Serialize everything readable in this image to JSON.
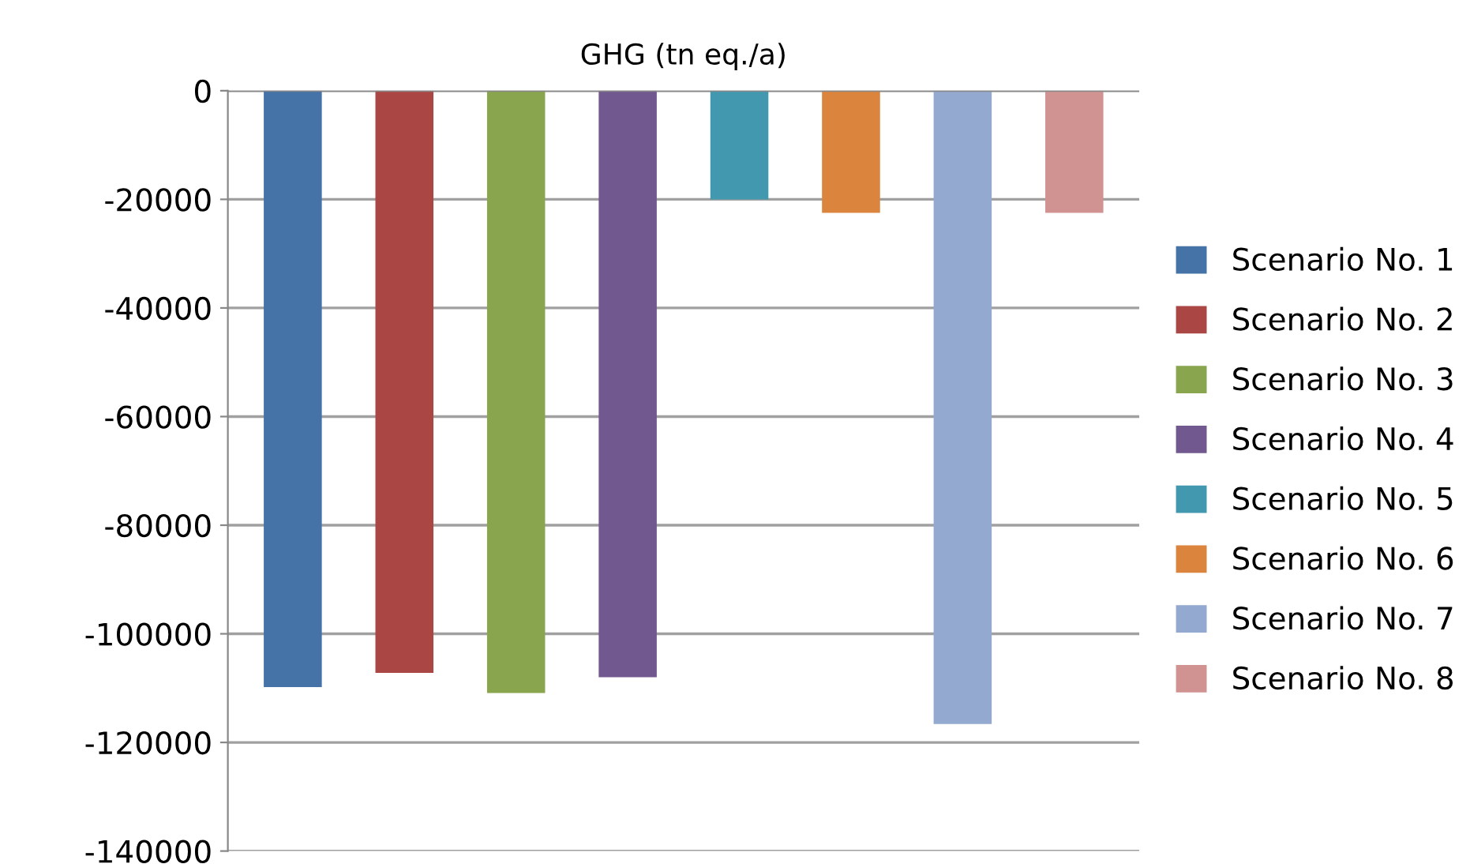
{
  "chart_data": {
    "type": "bar",
    "title": "GHG (tn eq./a)",
    "categories": [
      null
    ],
    "series": [
      {
        "name": "Scenario No. 1",
        "color": "#4572a7",
        "values": [
          -109800
        ]
      },
      {
        "name": "Scenario No. 2",
        "color": "#aa4643",
        "values": [
          -107200
        ]
      },
      {
        "name": "Scenario No. 3",
        "color": "#89a54e",
        "values": [
          -110900
        ]
      },
      {
        "name": "Scenario No. 4",
        "color": "#71588f",
        "values": [
          -108000
        ]
      },
      {
        "name": "Scenario No. 5",
        "color": "#4198af",
        "values": [
          -20000
        ]
      },
      {
        "name": "Scenario No. 6",
        "color": "#db843d",
        "values": [
          -22500
        ]
      },
      {
        "name": "Scenario No. 7",
        "color": "#93a9cf",
        "values": [
          -116600
        ]
      },
      {
        "name": "Scenario No. 8",
        "color": "#d19392",
        "values": [
          -22500
        ]
      }
    ],
    "ylim": [
      -140000,
      0
    ],
    "yticks": [
      -140000,
      -120000,
      -100000,
      -80000,
      -60000,
      -40000,
      -20000,
      0
    ],
    "grid": "y",
    "legend": "right"
  }
}
